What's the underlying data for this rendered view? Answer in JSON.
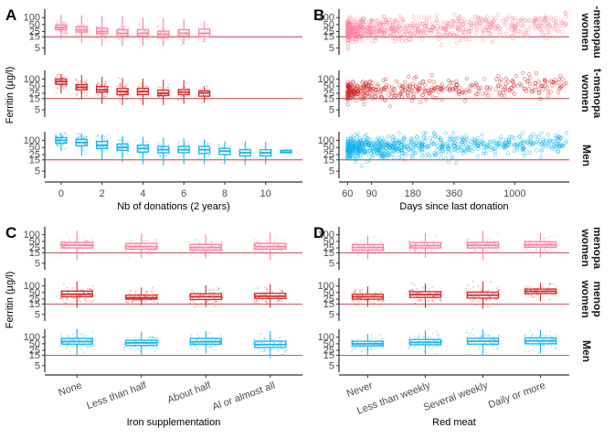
{
  "colors": {
    "premenopausal": "#ff7f9f",
    "postmenopausal": "#d42a2a",
    "men": "#14b4f0",
    "reference": "#b2222b"
  },
  "rows": [
    "Pre-menopausal women",
    "Post-menopausal women",
    "Men"
  ],
  "strips": {
    "b": [
      "-menopau",
      "women",
      "t-menopa",
      "women",
      "Men"
    ],
    "d": [
      "menopa",
      "women",
      "menop",
      "women",
      "Men"
    ]
  },
  "chart_data": [
    {
      "panel": "A",
      "type": "box",
      "xlabel": "Nb of donations (2 years)",
      "ylabel": "Ferritin (µg/l)",
      "y_scale": "log",
      "yticks": [
        5,
        15,
        25,
        50,
        100
      ],
      "ylim": [
        2.5,
        230
      ],
      "xticks": [
        0,
        2,
        4,
        6,
        8,
        10
      ],
      "xlim": [
        -0.8,
        11.8
      ],
      "reference_line": 15,
      "series": [
        {
          "name": "Pre-menopausal women",
          "x": [
            0,
            1,
            2,
            3,
            4,
            5,
            6,
            7
          ],
          "q1": [
            30,
            24,
            20,
            16,
            16,
            14,
            16,
            15
          ],
          "median": [
            38,
            30,
            25,
            21,
            21,
            19,
            21,
            21
          ],
          "q3": [
            48,
            40,
            35,
            30,
            30,
            26,
            30,
            32
          ],
          "min": [
            12,
            8,
            6,
            6,
            6,
            6,
            7,
            9
          ],
          "max": [
            130,
            125,
            120,
            110,
            100,
            95,
            85,
            70
          ]
        },
        {
          "name": "Post-menopausal women",
          "x": [
            0,
            1,
            2,
            3,
            4,
            5,
            6,
            7
          ],
          "q1": [
            60,
            35,
            28,
            22,
            22,
            20,
            22,
            19
          ],
          "median": [
            80,
            45,
            35,
            30,
            30,
            25,
            28,
            26
          ],
          "q3": [
            100,
            58,
            48,
            40,
            40,
            34,
            36,
            32
          ],
          "min": [
            25,
            14,
            9,
            8,
            8,
            8,
            9,
            10
          ],
          "max": [
            160,
            150,
            125,
            110,
            105,
            95,
            90,
            50
          ]
        },
        {
          "name": "Men",
          "x": [
            0,
            1,
            2,
            3,
            4,
            5,
            6,
            7,
            8,
            9,
            10,
            11
          ],
          "q1": [
            75,
            60,
            45,
            38,
            32,
            30,
            30,
            28,
            25,
            22,
            22,
            30
          ],
          "median": [
            100,
            80,
            62,
            50,
            45,
            40,
            40,
            40,
            35,
            30,
            30,
            32
          ],
          "q3": [
            130,
            110,
            90,
            70,
            62,
            55,
            55,
            55,
            46,
            40,
            40,
            38
          ],
          "min": [
            35,
            22,
            15,
            12,
            10,
            9,
            10,
            10,
            10,
            9,
            10,
            28
          ],
          "max": [
            200,
            190,
            170,
            150,
            140,
            130,
            120,
            110,
            90,
            90,
            85,
            42
          ]
        }
      ]
    },
    {
      "panel": "B",
      "type": "scatter",
      "xlabel": "Days since last donation",
      "ylabel": "",
      "x_scale": "log",
      "xticks": [
        60,
        90,
        180,
        360,
        1000
      ],
      "xlim": [
        52,
        2500
      ],
      "y_scale": "log",
      "yticks": [
        5,
        15,
        25,
        50,
        100
      ],
      "ylim": [
        2.5,
        230
      ],
      "reference_line": 15,
      "series": [
        {
          "name": "Pre-menopausal women",
          "x_range": [
            60,
            2400
          ],
          "n_points": 650,
          "median_ferritin": 30,
          "spread": 0.55
        },
        {
          "name": "Post-menopausal women",
          "x_range": [
            60,
            2400
          ],
          "n_points": 420,
          "median_ferritin": 32,
          "spread": 0.5
        },
        {
          "name": "Men",
          "x_range": [
            60,
            2400
          ],
          "n_points": 750,
          "median_ferritin": 50,
          "spread": 0.5
        }
      ]
    },
    {
      "panel": "C",
      "type": "box",
      "xlabel": "Iron supplementation",
      "ylabel": "Ferritin (µg/l)",
      "y_scale": "log",
      "yticks": [
        5,
        15,
        25,
        50,
        100
      ],
      "ylim": [
        2.5,
        230
      ],
      "categories": [
        "None",
        "Less than half",
        "About half",
        "Al or almost all"
      ],
      "reference_line": 15,
      "series": [
        {
          "name": "Pre-menopausal women",
          "q1": [
            25,
            22,
            20,
            22
          ],
          "median": [
            33,
            29,
            26,
            29
          ],
          "q3": [
            45,
            40,
            36,
            40
          ],
          "min": [
            7,
            9,
            8,
            7
          ],
          "max": [
            150,
            115,
            100,
            125
          ]
        },
        {
          "name": "Post-menopausal women",
          "q1": [
            32,
            25,
            24,
            27
          ],
          "median": [
            42,
            29,
            32,
            34
          ],
          "q3": [
            58,
            38,
            44,
            46
          ],
          "min": [
            10,
            13,
            11,
            10
          ],
          "max": [
            160,
            85,
            110,
            120
          ]
        },
        {
          "name": "Men",
          "q1": [
            48,
            42,
            48,
            34
          ],
          "median": [
            63,
            55,
            62,
            46
          ],
          "q3": [
            88,
            72,
            88,
            65
          ],
          "min": [
            15,
            15,
            18,
            11
          ],
          "max": [
            230,
            180,
            190,
            190
          ]
        }
      ]
    },
    {
      "panel": "D",
      "type": "box",
      "xlabel": "Red meat",
      "ylabel": "",
      "y_scale": "log",
      "yticks": [
        5,
        15,
        25,
        50,
        100
      ],
      "ylim": [
        2.5,
        230
      ],
      "categories": [
        "Never",
        "Less than weekly",
        "Several weekly",
        "Daily or more"
      ],
      "reference_line": 15,
      "series": [
        {
          "name": "Pre-menopausal women",
          "q1": [
            20,
            25,
            25,
            27
          ],
          "median": [
            26,
            32,
            33,
            35
          ],
          "q3": [
            35,
            44,
            45,
            48
          ],
          "min": [
            8,
            9,
            7,
            9
          ],
          "max": [
            90,
            120,
            150,
            120
          ]
        },
        {
          "name": "Post-menopausal women",
          "q1": [
            25,
            30,
            28,
            45
          ],
          "median": [
            32,
            40,
            38,
            57
          ],
          "q3": [
            42,
            55,
            52,
            72
          ],
          "min": [
            11,
            10,
            9,
            20
          ],
          "max": [
            95,
            130,
            160,
            140
          ]
        },
        {
          "name": "Men",
          "q1": [
            40,
            45,
            48,
            50
          ],
          "median": [
            50,
            58,
            65,
            68
          ],
          "q3": [
            65,
            78,
            90,
            92
          ],
          "min": [
            14,
            16,
            14,
            18
          ],
          "max": [
            140,
            200,
            230,
            210
          ]
        }
      ]
    }
  ]
}
